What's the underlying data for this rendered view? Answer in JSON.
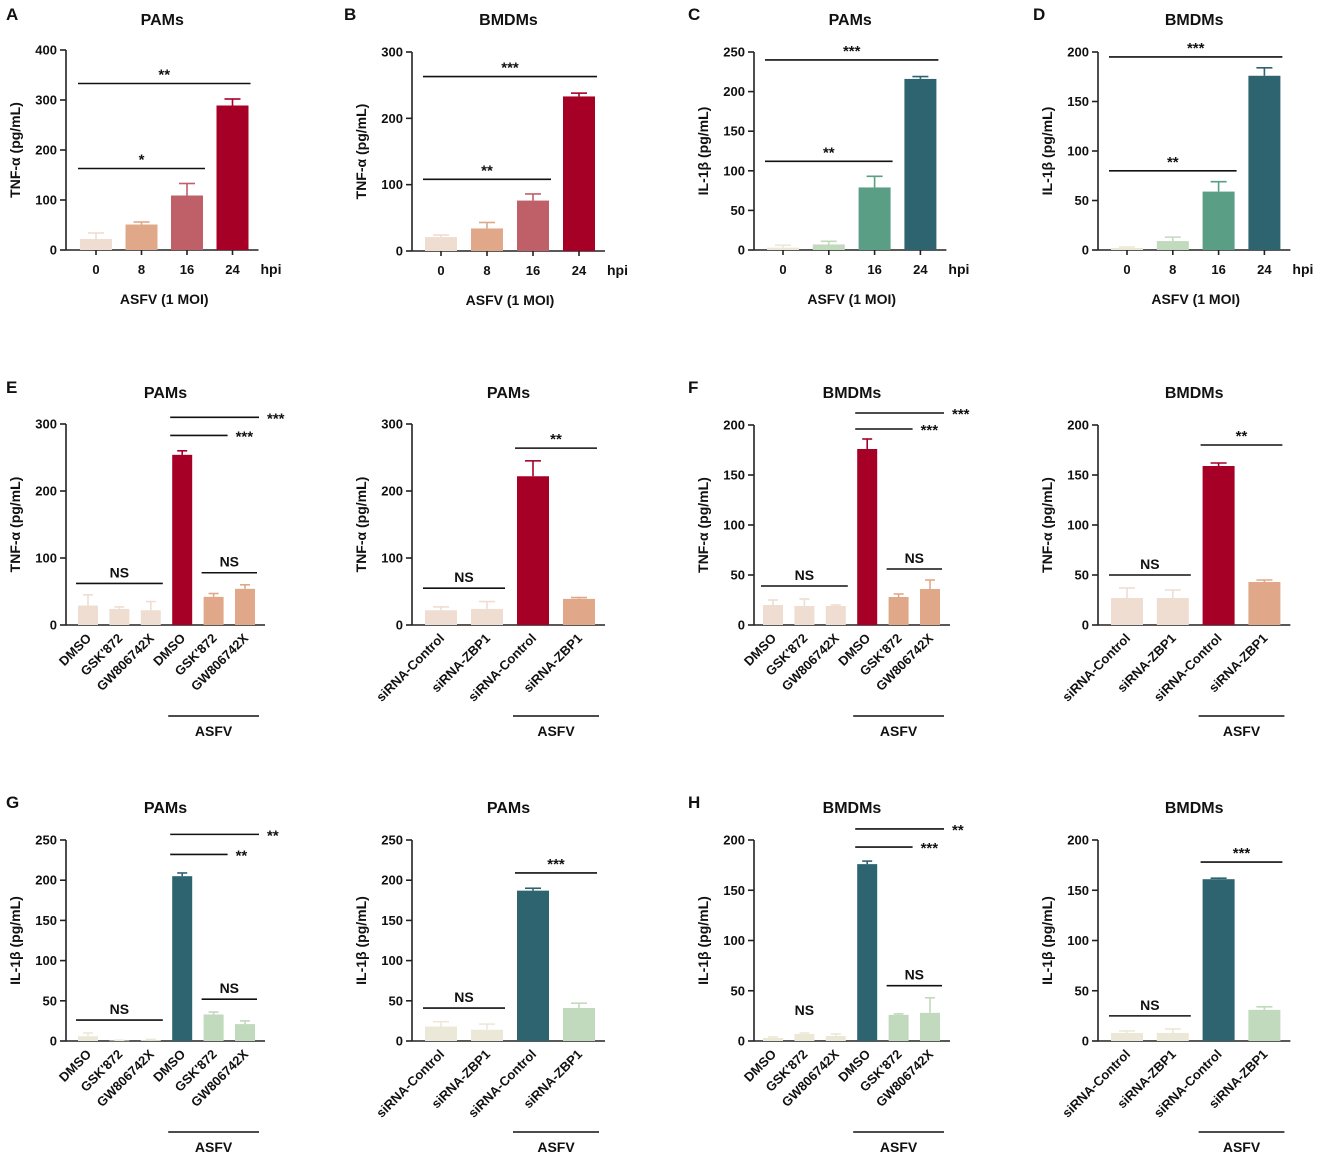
{
  "colors": {
    "red": [
      "#f0ddd2",
      "#e0a888",
      "#bf6068",
      "#a60026"
    ],
    "teal": [
      "#ece8d8",
      "#c1d9bd",
      "#5a9e86",
      "#2d6470"
    ]
  },
  "chart_data": [
    {
      "panel": "A",
      "type": "bar",
      "title": "PAMs",
      "ylabel": "TNF-α (pg/mL)",
      "ylim": [
        0,
        400
      ],
      "yticks": [
        0,
        100,
        200,
        300,
        400
      ],
      "categories": [
        "0",
        "8",
        "16",
        "24"
      ],
      "unit": "hpi",
      "xlabel": "ASFV (1 MOI)",
      "values": [
        22,
        51,
        109,
        289
      ],
      "errors": [
        12,
        5,
        24,
        13
      ],
      "palette": "red",
      "sig": [
        {
          "from": 0,
          "to": 2,
          "y": 163,
          "label": "*"
        },
        {
          "from": 0,
          "to": 3,
          "y": 333,
          "label": "**"
        }
      ]
    },
    {
      "panel": "B",
      "type": "bar",
      "title": "BMDMs",
      "ylabel": "TNF-α (pg/mL)",
      "ylim": [
        0,
        300
      ],
      "yticks": [
        0,
        100,
        200,
        300
      ],
      "categories": [
        "0",
        "8",
        "16",
        "24"
      ],
      "unit": "hpi",
      "xlabel": "ASFV (1 MOI)",
      "values": [
        21,
        34,
        76,
        233
      ],
      "errors": [
        3,
        9,
        10,
        5
      ],
      "palette": "red",
      "sig": [
        {
          "from": 0,
          "to": 2,
          "y": 108,
          "label": "**"
        },
        {
          "from": 0,
          "to": 3,
          "y": 263,
          "label": "***"
        }
      ]
    },
    {
      "panel": "C",
      "type": "bar",
      "title": "PAMs",
      "ylabel": "IL-1β (pg/mL)",
      "ylim": [
        0,
        250
      ],
      "yticks": [
        0,
        50,
        100,
        150,
        200,
        250
      ],
      "categories": [
        "0",
        "8",
        "16",
        "24"
      ],
      "unit": "hpi",
      "xlabel": "ASFV (1 MOI)",
      "values": [
        3,
        7,
        79,
        216
      ],
      "errors": [
        3,
        4,
        14,
        3
      ],
      "palette": "teal",
      "sig": [
        {
          "from": 0,
          "to": 2,
          "y": 112,
          "label": "**"
        },
        {
          "from": 0,
          "to": 3,
          "y": 240,
          "label": "***"
        }
      ]
    },
    {
      "panel": "D",
      "type": "bar",
      "title": "BMDMs",
      "ylabel": "IL-1β (pg/mL)",
      "ylim": [
        0,
        200
      ],
      "yticks": [
        0,
        50,
        100,
        150,
        200
      ],
      "categories": [
        "0",
        "8",
        "16",
        "24"
      ],
      "unit": "hpi",
      "xlabel": "ASFV (1 MOI)",
      "values": [
        2,
        9,
        59,
        176
      ],
      "errors": [
        1,
        4,
        10,
        8
      ],
      "palette": "teal",
      "sig": [
        {
          "from": 0,
          "to": 2,
          "y": 80,
          "label": "**"
        },
        {
          "from": 0,
          "to": 3,
          "y": 195,
          "label": "***"
        }
      ]
    },
    {
      "panel": "E",
      "type": "bar",
      "title": "PAMs",
      "ylabel": "TNF-α (pg/mL)",
      "ylim": [
        0,
        300
      ],
      "yticks": [
        0,
        100,
        200,
        300
      ],
      "categories": [
        "DMSO",
        "GSK'872",
        "GW806742X",
        "DMSO",
        "GSK'872",
        "GW806742X"
      ],
      "group_label": "ASFV",
      "values": [
        29,
        24,
        22,
        254,
        42,
        54
      ],
      "errors": [
        16,
        3,
        13,
        6,
        5,
        6
      ],
      "palette_idx": [
        0,
        0,
        0,
        3,
        1,
        1
      ],
      "palette": "red",
      "sig": [
        {
          "from": 0,
          "to": 2,
          "y": 62,
          "label": "NS"
        },
        {
          "from": 4,
          "to": 5,
          "y": 78,
          "label": "NS"
        },
        {
          "from": 3,
          "to": 4,
          "y": 283,
          "label": "***"
        },
        {
          "from": 3,
          "to": 5,
          "y": 310,
          "label": "***"
        }
      ]
    },
    {
      "panel": "",
      "type": "bar",
      "title": "PAMs",
      "ylabel": "TNF-α (pg/mL)",
      "ylim": [
        0,
        300
      ],
      "yticks": [
        0,
        100,
        200,
        300
      ],
      "categories": [
        "siRNA-Control",
        "siRNA-ZBP1",
        "siRNA-Control",
        "siRNA-ZBP1"
      ],
      "group_label": "ASFV",
      "values": [
        22,
        24,
        222,
        39
      ],
      "errors": [
        5,
        11,
        23,
        2
      ],
      "palette_idx": [
        0,
        0,
        3,
        1
      ],
      "palette": "red",
      "sig": [
        {
          "from": 0,
          "to": 1,
          "y": 55,
          "label": "NS"
        },
        {
          "from": 2,
          "to": 3,
          "y": 264,
          "label": "**"
        }
      ]
    },
    {
      "panel": "F",
      "type": "bar",
      "title": "BMDMs",
      "ylabel": "TNF-α (pg/mL)",
      "ylim": [
        0,
        200
      ],
      "yticks": [
        0,
        50,
        100,
        150,
        200
      ],
      "categories": [
        "DMSO",
        "GSK'872",
        "GW806742X",
        "DMSO",
        "GSK'872",
        "GW806742X"
      ],
      "group_label": "ASFV",
      "values": [
        20,
        19,
        19,
        176,
        28,
        36
      ],
      "errors": [
        5,
        7,
        1,
        10,
        3,
        9
      ],
      "palette_idx": [
        0,
        0,
        0,
        3,
        1,
        1
      ],
      "palette": "red",
      "sig": [
        {
          "from": 0,
          "to": 2,
          "y": 39,
          "label": "NS"
        },
        {
          "from": 4,
          "to": 5,
          "y": 56,
          "label": "NS"
        },
        {
          "from": 3,
          "to": 4,
          "y": 196,
          "label": "***"
        },
        {
          "from": 3,
          "to": 5,
          "y": 212,
          "label": "***"
        }
      ]
    },
    {
      "panel": "",
      "type": "bar",
      "title": "BMDMs",
      "ylabel": "TNF-α (pg/mL)",
      "ylim": [
        0,
        200
      ],
      "yticks": [
        0,
        50,
        100,
        150,
        200
      ],
      "categories": [
        "siRNA-Control",
        "siRNA-ZBP1",
        "siRNA-Control",
        "siRNA-ZBP1"
      ],
      "group_label": "ASFV",
      "values": [
        27,
        27,
        159,
        43
      ],
      "errors": [
        10,
        8,
        3,
        2
      ],
      "palette_idx": [
        0,
        0,
        3,
        1
      ],
      "palette": "red",
      "sig": [
        {
          "from": 0,
          "to": 1,
          "y": 50,
          "label": "NS"
        },
        {
          "from": 2,
          "to": 3,
          "y": 180,
          "label": "**"
        }
      ]
    },
    {
      "panel": "G",
      "type": "bar",
      "title": "PAMs",
      "ylabel": "IL-1β (pg/mL)",
      "ylim": [
        0,
        250
      ],
      "yticks": [
        0,
        50,
        100,
        150,
        200,
        250
      ],
      "categories": [
        "DMSO",
        "GSK'872",
        "GW806742X",
        "DMSO",
        "GSK'872",
        "GW806742X"
      ],
      "group_label": "ASFV",
      "values": [
        6,
        0.5,
        1,
        205,
        33,
        21
      ],
      "errors": [
        4,
        0.5,
        1,
        4,
        3,
        4
      ],
      "palette_idx": [
        0,
        0,
        0,
        3,
        1,
        1
      ],
      "palette": "teal",
      "sig": [
        {
          "from": 0,
          "to": 2,
          "y": 26,
          "label": "NS"
        },
        {
          "from": 4,
          "to": 5,
          "y": 52,
          "label": "NS"
        },
        {
          "from": 3,
          "to": 4,
          "y": 232,
          "label": "**"
        },
        {
          "from": 3,
          "to": 5,
          "y": 257,
          "label": "**"
        }
      ]
    },
    {
      "panel": "",
      "type": "bar",
      "title": "PAMs",
      "ylabel": "IL-1β (pg/mL)",
      "ylim": [
        0,
        250
      ],
      "yticks": [
        0,
        50,
        100,
        150,
        200,
        250
      ],
      "categories": [
        "siRNA-Control",
        "siRNA-ZBP1",
        "siRNA-Control",
        "siRNA-ZBP1"
      ],
      "group_label": "ASFV",
      "values": [
        18,
        14,
        187,
        41
      ],
      "errors": [
        6,
        7,
        3,
        6
      ],
      "palette_idx": [
        0,
        0,
        3,
        1
      ],
      "palette": "teal",
      "sig": [
        {
          "from": 0,
          "to": 1,
          "y": 41,
          "label": "NS"
        },
        {
          "from": 2,
          "to": 3,
          "y": 209,
          "label": "***"
        }
      ]
    },
    {
      "panel": "H",
      "type": "bar",
      "title": "BMDMs",
      "ylabel": "IL-1β (pg/mL)",
      "ylim": [
        0,
        200
      ],
      "yticks": [
        0,
        50,
        100,
        150,
        200
      ],
      "categories": [
        "DMSO",
        "GSK'872",
        "GW806742X",
        "DMSO",
        "GSK'872",
        "GW806742X"
      ],
      "group_label": "ASFV",
      "values": [
        3,
        7,
        5,
        176,
        26,
        28
      ],
      "errors": [
        1,
        1,
        2,
        3,
        1,
        15
      ],
      "palette_idx": [
        0,
        0,
        0,
        3,
        1,
        1
      ],
      "palette": "teal",
      "sig": [
        {
          "from": 0,
          "to": 2,
          "y": -1,
          "label": "NS",
          "noline": true,
          "label_y": 26
        },
        {
          "from": 4,
          "to": 5,
          "y": 55,
          "label": "NS"
        },
        {
          "from": 3,
          "to": 4,
          "y": 193,
          "label": "***"
        },
        {
          "from": 3,
          "to": 5,
          "y": 211,
          "label": "**"
        }
      ]
    },
    {
      "panel": "",
      "type": "bar",
      "title": "BMDMs",
      "ylabel": "IL-1β (pg/mL)",
      "ylim": [
        0,
        200
      ],
      "yticks": [
        0,
        50,
        100,
        150,
        200
      ],
      "categories": [
        "siRNA-Control",
        "siRNA-ZBP1",
        "siRNA-Control",
        "siRNA-ZBP1"
      ],
      "group_label": "ASFV",
      "values": [
        8,
        8,
        161,
        31
      ],
      "errors": [
        2,
        4,
        1,
        3
      ],
      "palette_idx": [
        0,
        0,
        3,
        1
      ],
      "palette": "teal",
      "sig": [
        {
          "from": 0,
          "to": 1,
          "y": 25,
          "label": "NS"
        },
        {
          "from": 2,
          "to": 3,
          "y": 178,
          "label": "***"
        }
      ]
    }
  ]
}
